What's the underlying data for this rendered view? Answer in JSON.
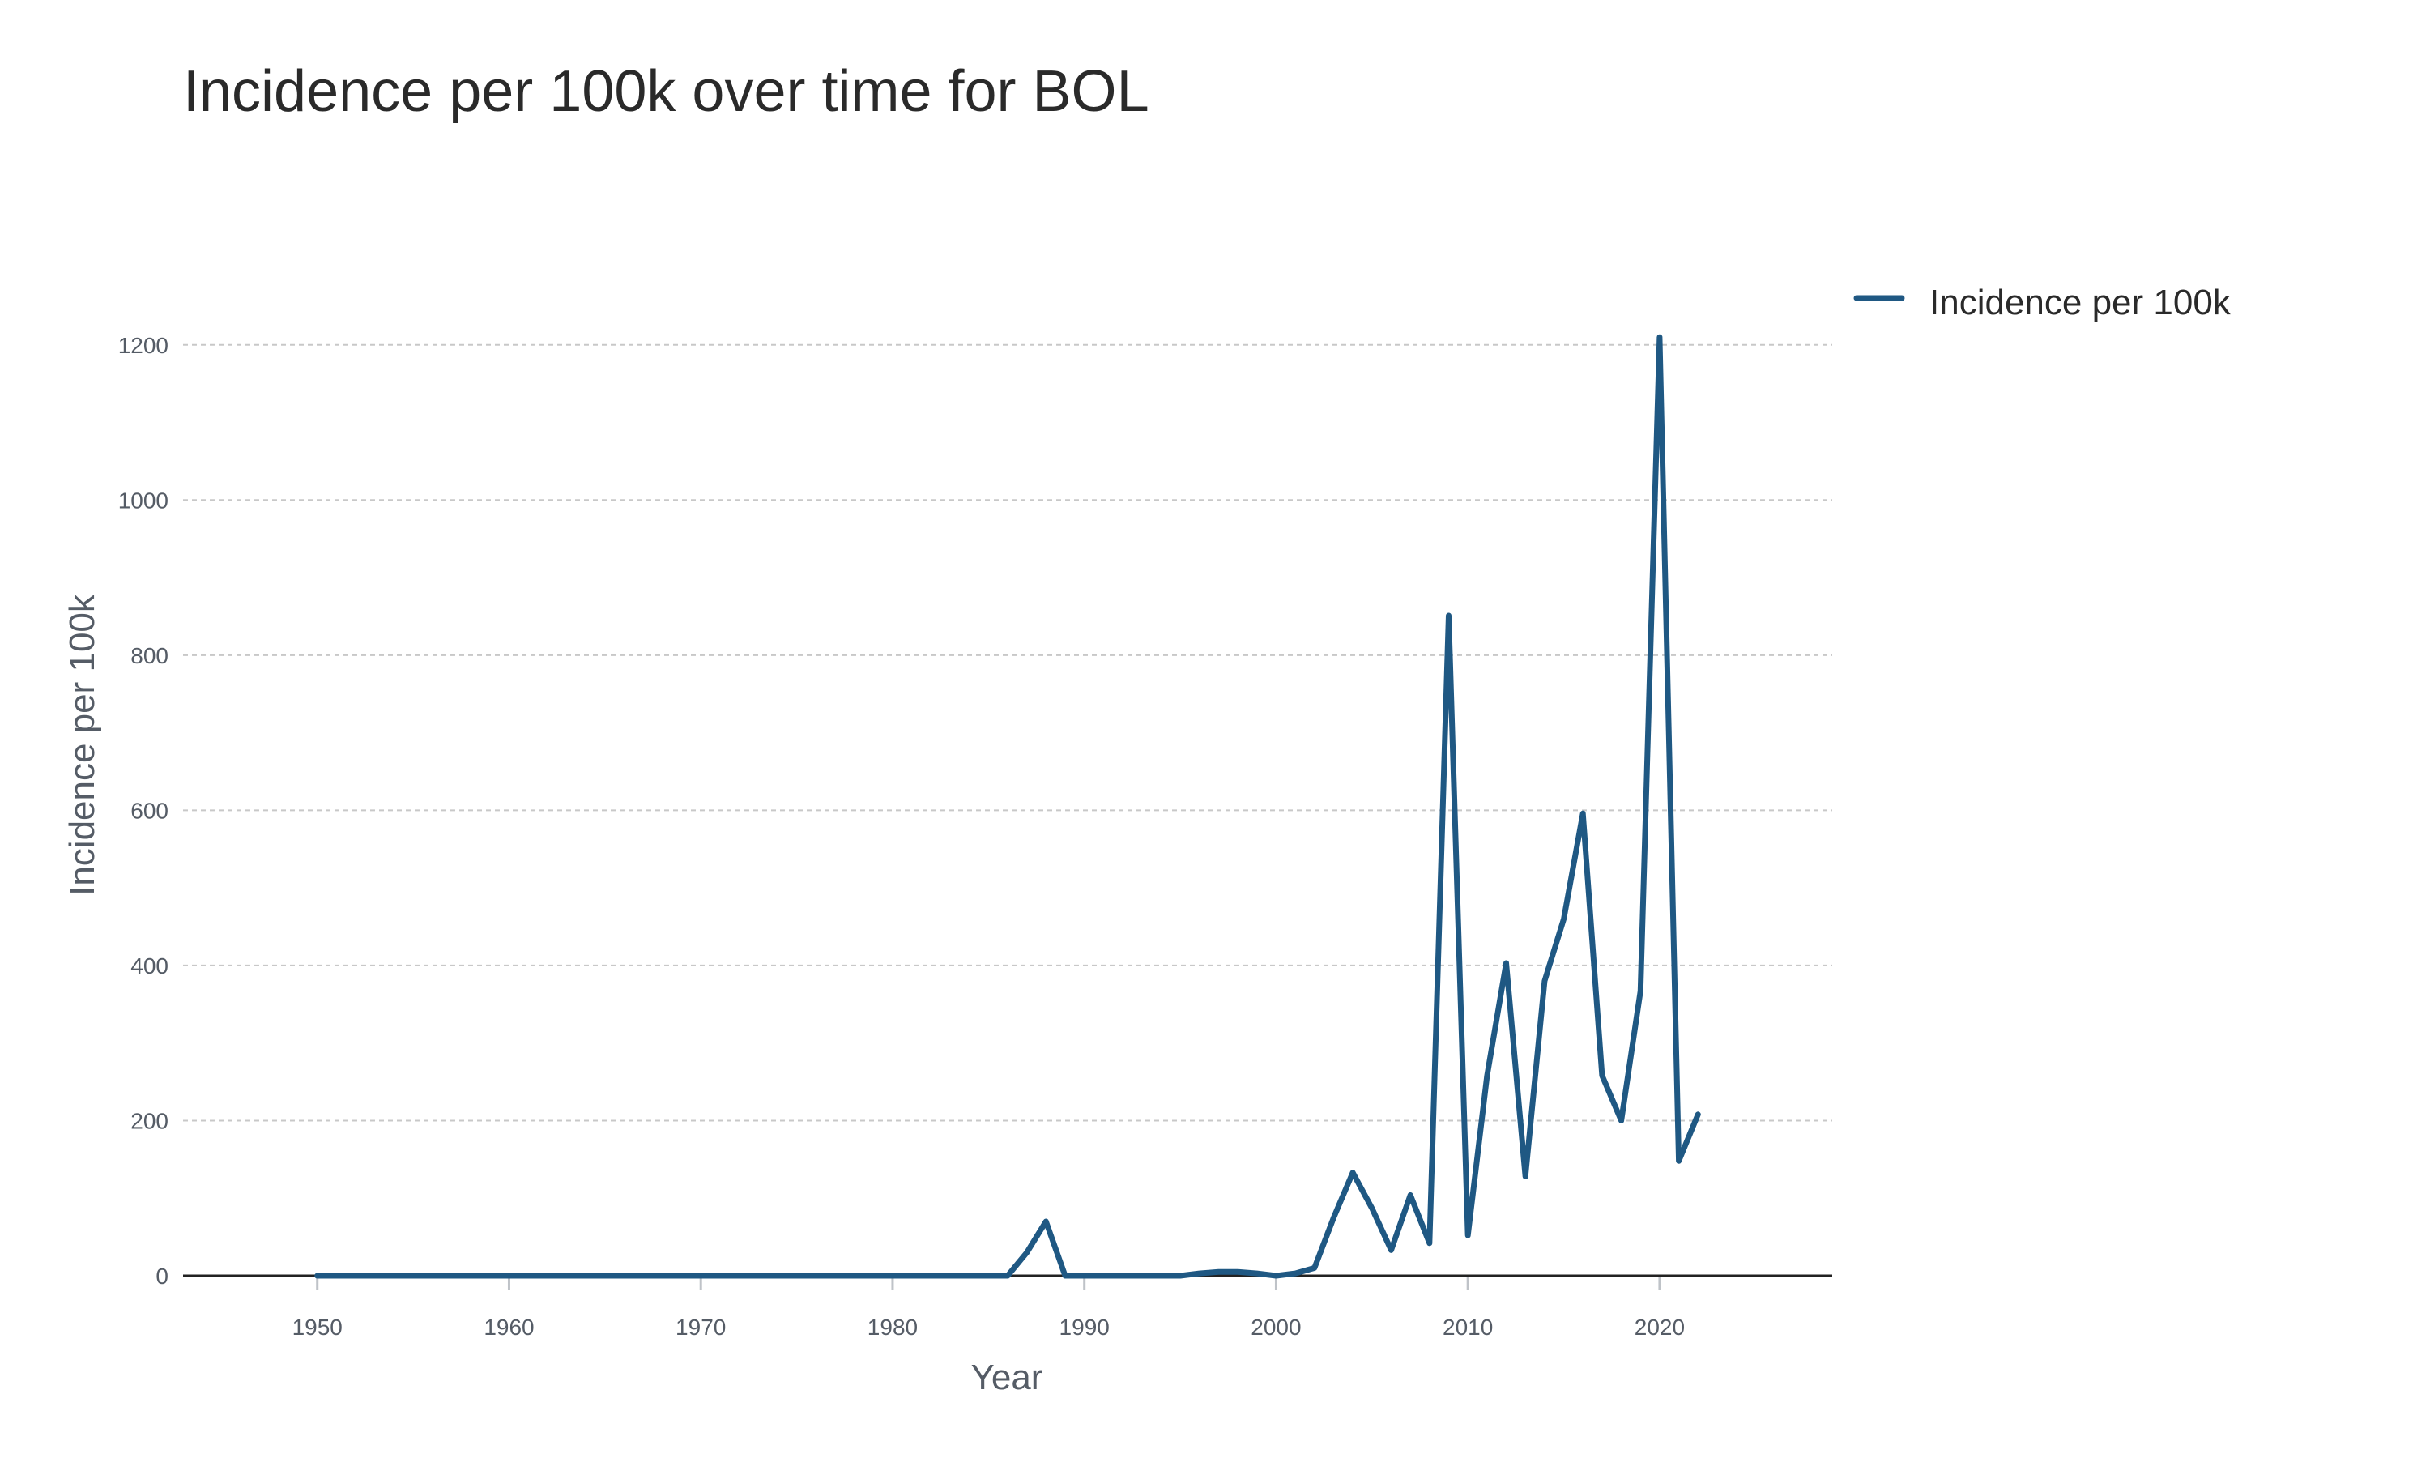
{
  "chart_data": {
    "type": "line",
    "title": "Incidence per 100k over time for BOL",
    "xlabel": "Year",
    "ylabel": "Incidence per 100k",
    "xlim": [
      1943,
      2029
    ],
    "ylim": [
      0,
      1300
    ],
    "x_ticks": [
      1950,
      1960,
      1970,
      1980,
      1990,
      2000,
      2010,
      2020
    ],
    "y_ticks": [
      0,
      200,
      400,
      600,
      800,
      1000,
      1200
    ],
    "grid": "y-dashed",
    "legend_position": "top-right",
    "colors": {
      "series": "#1f5883"
    },
    "series": [
      {
        "name": "Incidence per 100k",
        "x": [
          1950,
          1951,
          1952,
          1953,
          1954,
          1955,
          1956,
          1957,
          1958,
          1959,
          1960,
          1961,
          1962,
          1963,
          1964,
          1965,
          1966,
          1967,
          1968,
          1969,
          1970,
          1971,
          1972,
          1973,
          1974,
          1975,
          1976,
          1977,
          1978,
          1979,
          1980,
          1981,
          1982,
          1983,
          1984,
          1985,
          1986,
          1987,
          1988,
          1989,
          1990,
          1991,
          1992,
          1993,
          1994,
          1995,
          1996,
          1997,
          1998,
          1999,
          2000,
          2001,
          2002,
          2003,
          2004,
          2005,
          2006,
          2007,
          2008,
          2009,
          2010,
          2011,
          2012,
          2013,
          2014,
          2015,
          2016,
          2017,
          2018,
          2019,
          2020,
          2021,
          2022
        ],
        "values": [
          0,
          0,
          0,
          0,
          0,
          0,
          0,
          0,
          0,
          0,
          0,
          0,
          0,
          0,
          0,
          0,
          0,
          0,
          0,
          0,
          0,
          0,
          0,
          0,
          0,
          0,
          0,
          0,
          0,
          0,
          0,
          0,
          0,
          0,
          0,
          0,
          0,
          30,
          70,
          0,
          0,
          0,
          0,
          0,
          0,
          0,
          3,
          5,
          5,
          3,
          0,
          3,
          10,
          75,
          133,
          87,
          33,
          104,
          42,
          851,
          52,
          258,
          403,
          128,
          380,
          460,
          596,
          258,
          200,
          367,
          1210,
          148,
          208
        ]
      }
    ]
  }
}
